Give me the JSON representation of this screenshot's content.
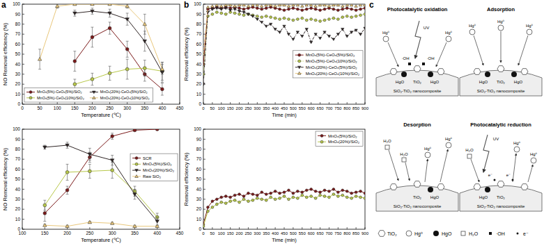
{
  "panel_labels": [
    "a",
    "b",
    "c"
  ],
  "chart_data": [
    {
      "type": "line",
      "x_label": "Temperature (℃)",
      "y_label": "NO Removal efficiency (%)",
      "x": [
        50,
        100,
        150,
        200,
        250,
        300,
        350,
        400
      ],
      "xlim": [
        0,
        450
      ],
      "xticks": [
        0,
        50,
        100,
        150,
        200,
        250,
        300,
        350,
        400,
        450
      ],
      "ylim": [
        0,
        100
      ],
      "yticks": [
        0,
        10,
        20,
        30,
        40,
        50,
        60,
        70,
        80,
        90,
        100
      ],
      "grid": false,
      "legend": "lower left",
      "series": [
        {
          "name": "MnOₓ(5%)-CeOₓ(5%)/SiO₂",
          "color": "#7b1a1a",
          "marker": "circle",
          "line_style": "solid",
          "values": [
            null,
            null,
            43,
            67,
            76,
            55,
            30,
            15
          ],
          "errors": [
            null,
            null,
            10,
            10,
            6,
            8,
            7,
            6
          ]
        },
        {
          "name": "MnOₓ(5%)-CeOₓ(10%)/SiO₂",
          "color": "#b8c84a",
          "marker": "circle",
          "line_style": "solid",
          "values": [
            null,
            null,
            20,
            25,
            31,
            35,
            36,
            33
          ],
          "errors": [
            null,
            null,
            5,
            6,
            7,
            10,
            8,
            9
          ]
        },
        {
          "name": "MnOₓ(20%)-CeOₓ(5%)/SiO₂",
          "color": "#2e2424",
          "marker": "triangle-down",
          "line_style": "solid",
          "values": [
            null,
            null,
            91,
            93,
            91,
            85,
            63,
            32
          ],
          "errors": [
            null,
            null,
            3,
            3,
            4,
            6,
            10,
            10
          ]
        },
        {
          "name": "MnOₓ(20%)-CeOₓ(10%)/SiO₂",
          "color": "#e9c77b",
          "marker": "triangle-up",
          "line_style": "solid",
          "values": [
            45,
            98,
            100,
            100,
            100,
            98,
            80,
            35
          ],
          "errors": [
            10,
            2,
            1,
            1,
            1,
            2,
            10,
            5
          ]
        }
      ]
    },
    {
      "type": "line",
      "x_label": "Temperature (℃)",
      "y_label": "NO Removal efficiency (%)",
      "x": [
        150,
        200,
        250,
        300,
        350,
        400
      ],
      "xlim": [
        100,
        450
      ],
      "xticks": [
        100,
        150,
        200,
        250,
        300,
        350,
        400,
        450
      ],
      "ylim": [
        0,
        100
      ],
      "yticks": [
        0,
        10,
        20,
        30,
        40,
        50,
        60,
        70,
        80,
        90,
        100
      ],
      "grid": false,
      "legend": "center right",
      "series": [
        {
          "name": "SCR",
          "color": "#7b1a1a",
          "marker": "circle",
          "line_style": "solid",
          "values": [
            16,
            39,
            72,
            93,
            99,
            100
          ],
          "errors": [
            8,
            4,
            5,
            3,
            1,
            1
          ]
        },
        {
          "name": "MnOₓ(5%)/SiO₂",
          "color": "#b8c84a",
          "marker": "circle",
          "line_style": "solid",
          "values": [
            24,
            57,
            58,
            59,
            38,
            12
          ],
          "errors": [
            5,
            8,
            7,
            8,
            5,
            4
          ]
        },
        {
          "name": "MnOₓ(20%)/SiO₂",
          "color": "#2e2424",
          "marker": "triangle-down",
          "line_style": "solid",
          "values": [
            82,
            84,
            75,
            69,
            35,
            8
          ],
          "errors": [
            2,
            3,
            6,
            5,
            5,
            4
          ]
        },
        {
          "name": "Raw SiO₂",
          "color": "#e9c77b",
          "marker": "triangle-up",
          "line_style": "solid",
          "values": [
            4,
            3,
            7,
            6,
            3,
            3
          ],
          "errors": [
            1,
            1,
            1,
            1,
            1,
            1
          ]
        }
      ]
    },
    {
      "type": "line",
      "x_label": "Time (min)",
      "y_label": "Removal efficiency (%)",
      "x": [
        0,
        25,
        50,
        75,
        100,
        125,
        150,
        175,
        200,
        225,
        250,
        275,
        300,
        325,
        350,
        375,
        400,
        425,
        450,
        475,
        500,
        525,
        550,
        575,
        600,
        625,
        650,
        675,
        700,
        725,
        750,
        775,
        800,
        825,
        850,
        875,
        900
      ],
      "xlim": [
        0,
        900
      ],
      "xticks": [
        0,
        50,
        100,
        150,
        200,
        250,
        300,
        350,
        400,
        450,
        500,
        550,
        600,
        650,
        700,
        750,
        800,
        850,
        900
      ],
      "ylim": [
        0,
        100
      ],
      "yticks": [
        0,
        10,
        20,
        30,
        40,
        50,
        60,
        70,
        80,
        90,
        100
      ],
      "grid": false,
      "legend": "center right",
      "series": [
        {
          "name": "MnOₓ(5%)-CeOₓ(5%)/SiO₂",
          "color": "#7b1a1a",
          "marker": "circle",
          "line_style": "solid",
          "values": [
            40,
            95,
            96,
            97,
            96,
            97,
            96,
            97,
            96,
            95,
            96,
            97,
            96,
            95,
            96,
            97,
            96,
            95,
            94,
            95,
            96,
            95,
            94,
            95,
            96,
            95,
            94,
            95,
            96,
            95,
            94,
            95,
            96,
            95,
            94,
            95,
            96
          ]
        },
        {
          "name": "MnOₓ(5%)-CeOₓ(10%)/SiO₂",
          "color": "#b8c84a",
          "marker": "circle",
          "line_style": "dotted",
          "values": [
            30,
            88,
            90,
            92,
            91,
            90,
            92,
            91,
            90,
            89,
            90,
            89,
            88,
            87,
            88,
            87,
            86,
            85,
            86,
            85,
            84,
            85,
            86,
            84,
            85,
            84,
            83,
            84,
            85,
            86,
            85,
            87,
            88,
            87,
            88,
            89,
            90
          ]
        },
        {
          "name": "MnOₓ(20%)-CeOₓ(5%)/SiO₂",
          "color": "#2e2424",
          "marker": "triangle-down",
          "line_style": "dashdot",
          "values": [
            20,
            92,
            95,
            96,
            95,
            96,
            94,
            95,
            93,
            92,
            90,
            88,
            85,
            82,
            78,
            80,
            75,
            72,
            78,
            70,
            65,
            72,
            68,
            75,
            62,
            70,
            66,
            72,
            68,
            65,
            70,
            75,
            68,
            72,
            74,
            70,
            76
          ]
        },
        {
          "name": "MnOₓ(20%)-CeOₓ(10%)/SiO₂",
          "color": "#e9c77b",
          "marker": "triangle-up",
          "line_style": "dashed",
          "values": [
            50,
            97,
            98,
            99,
            98,
            99,
            99,
            98,
            99,
            99,
            98,
            99,
            99,
            98,
            99,
            99,
            98,
            99,
            99,
            98,
            99,
            99,
            98,
            99,
            99,
            98,
            99,
            99,
            98,
            99,
            99,
            98,
            99,
            99,
            98,
            99,
            99
          ]
        }
      ]
    },
    {
      "type": "line",
      "x_label": "Time (min)",
      "y_label": "Removal efficiency (%)",
      "x": [
        0,
        25,
        50,
        75,
        100,
        125,
        150,
        175,
        200,
        225,
        250,
        275,
        300,
        325,
        350,
        375,
        400,
        425,
        450,
        475,
        500,
        525,
        550,
        575,
        600,
        625,
        650,
        675,
        700,
        725,
        750,
        775,
        800,
        825,
        850,
        875,
        900
      ],
      "xlim": [
        0,
        900
      ],
      "xticks": [
        0,
        50,
        100,
        150,
        200,
        250,
        300,
        350,
        400,
        450,
        500,
        550,
        600,
        650,
        700,
        750,
        800,
        850,
        900
      ],
      "ylim": [
        0,
        100
      ],
      "yticks": [
        0,
        10,
        20,
        30,
        40,
        50,
        60,
        70,
        80,
        90,
        100
      ],
      "grid": false,
      "legend": "upper right",
      "series": [
        {
          "name": "MnOₓ(5%)/SiO₂",
          "color": "#7b1a1a",
          "marker": "circle",
          "line_style": "solid",
          "values": [
            5,
            22,
            28,
            30,
            32,
            33,
            32,
            34,
            35,
            33,
            36,
            35,
            34,
            37,
            35,
            36,
            38,
            36,
            37,
            39,
            36,
            38,
            37,
            39,
            40,
            38,
            37,
            39,
            38,
            40,
            37,
            39,
            38,
            36,
            37,
            38,
            36
          ]
        },
        {
          "name": "MnOₓ(20%)/SiO₂",
          "color": "#b8c84a",
          "marker": "circle",
          "line_style": "solid",
          "values": [
            3,
            18,
            22,
            25,
            27,
            26,
            28,
            29,
            27,
            30,
            28,
            29,
            31,
            30,
            29,
            32,
            30,
            31,
            33,
            30,
            32,
            31,
            34,
            32,
            33,
            31,
            34,
            33,
            32,
            35,
            33,
            34,
            32,
            31,
            33,
            32,
            31
          ]
        }
      ]
    }
  ],
  "diagram": {
    "panels": [
      {
        "title": "Photocatalytic oxidation",
        "material": "SiO₂-TiO₂ nanocomposite",
        "labels": [
          "UV",
          "Hg⁰",
          "Hg⁰",
          "·OH",
          "·OH",
          "HgO",
          "TiO₂",
          "HgO"
        ]
      },
      {
        "title": "Adsorption",
        "material": "SiO₂-TiO₂ nanocomposite",
        "labels": [
          "Hg⁰",
          "Hg⁰",
          "Hg⁰",
          "HgO",
          "TiO₂",
          "HgO"
        ]
      },
      {
        "title": "Desorption",
        "material": "SiO₂-TiO₂ nanocomposite",
        "labels": [
          "H₂O",
          "H₂O",
          "Hg⁰",
          "Hg⁰",
          "TiO₂",
          "HgO"
        ]
      },
      {
        "title": "Photocatalytic reduction",
        "material": "SiO₂-TiO₂ nanocomposite",
        "labels": [
          "UV",
          "H₂O",
          "Hg⁰",
          "Hg⁰",
          "e⁻",
          "e⁻",
          "HgO",
          "TiO₂"
        ]
      }
    ],
    "legend": [
      {
        "label": "TiO₂",
        "shape": "hexagon"
      },
      {
        "label": "Hg⁰",
        "shape": "open-circle"
      },
      {
        "label": "HgO",
        "shape": "filled-circle"
      },
      {
        "label": "H₂O",
        "shape": "open-square"
      },
      {
        "label": "·OH",
        "shape": "filled-square"
      },
      {
        "label": "e⁻",
        "shape": "dot"
      }
    ]
  }
}
